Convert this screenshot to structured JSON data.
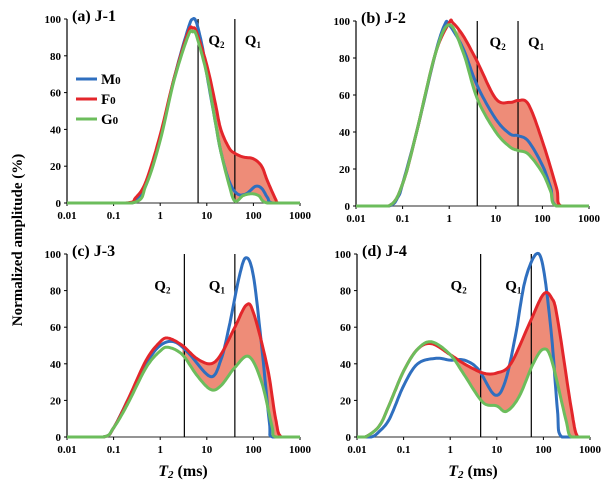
{
  "ylabel": "Normalized amplitude (%)",
  "xlabel_var": "T",
  "xlabel_sub": "2",
  "xlabel_unit": " (ms)",
  "legend": [
    {
      "label": "M",
      "sub": "0",
      "color": "#2f6fbf"
    },
    {
      "label": "F",
      "sub": "0",
      "color": "#e3262b"
    },
    {
      "label": "G",
      "sub": "0",
      "color": "#6cbd5c"
    }
  ],
  "fill_color": "#ee8c78",
  "chart_data": [
    {
      "type": "line",
      "title": "(a) J-1",
      "xscale": "log",
      "xlim": [
        0.01,
        1000
      ],
      "ylim": [
        0,
        100
      ],
      "xticks": [
        "0.01",
        "0.1",
        "1",
        "10",
        "100",
        "1000"
      ],
      "yticks": [
        "0",
        "20",
        "40",
        "60",
        "80",
        "100"
      ],
      "regions": [
        {
          "label": "Q",
          "sub": "2",
          "boundary": 6.5
        },
        {
          "label": "Q",
          "sub": "1",
          "boundary": 40
        }
      ],
      "shaded_between": [
        "F0",
        "G0"
      ],
      "shaded_from": 10,
      "series": [
        {
          "name": "M0",
          "points": [
            [
              0.01,
              0
            ],
            [
              0.2,
              0
            ],
            [
              0.3,
              2
            ],
            [
              0.5,
              10
            ],
            [
              1,
              35
            ],
            [
              2,
              68
            ],
            [
              4,
              95
            ],
            [
              5,
              100
            ],
            [
              6,
              98
            ],
            [
              8,
              85
            ],
            [
              10,
              70
            ],
            [
              15,
              45
            ],
            [
              20,
              28
            ],
            [
              30,
              12
            ],
            [
              45,
              5
            ],
            [
              70,
              5
            ],
            [
              110,
              9
            ],
            [
              150,
              8
            ],
            [
              200,
              3
            ],
            [
              260,
              0
            ],
            [
              1000,
              0
            ]
          ]
        },
        {
          "name": "F0",
          "points": [
            [
              0.01,
              0
            ],
            [
              0.18,
              0
            ],
            [
              0.3,
              3
            ],
            [
              0.5,
              12
            ],
            [
              1,
              37
            ],
            [
              2,
              68
            ],
            [
              4,
              93
            ],
            [
              5,
              95
            ],
            [
              6,
              93
            ],
            [
              10,
              75
            ],
            [
              15,
              55
            ],
            [
              20,
              40
            ],
            [
              30,
              30
            ],
            [
              40,
              27
            ],
            [
              60,
              25
            ],
            [
              100,
              24
            ],
            [
              150,
              20
            ],
            [
              200,
              12
            ],
            [
              300,
              2
            ],
            [
              350,
              0
            ],
            [
              1000,
              0
            ]
          ]
        },
        {
          "name": "G0",
          "points": [
            [
              0.01,
              0
            ],
            [
              0.25,
              0
            ],
            [
              0.5,
              10
            ],
            [
              1,
              34
            ],
            [
              2,
              67
            ],
            [
              4,
              91
            ],
            [
              5,
              93
            ],
            [
              6,
              91
            ],
            [
              10,
              70
            ],
            [
              15,
              45
            ],
            [
              20,
              28
            ],
            [
              30,
              10
            ],
            [
              40,
              1
            ],
            [
              60,
              4
            ],
            [
              90,
              5
            ],
            [
              130,
              4
            ],
            [
              200,
              0
            ],
            [
              1000,
              0
            ]
          ]
        }
      ]
    },
    {
      "type": "line",
      "title": "(b) J-2",
      "xscale": "log",
      "xlim": [
        0.01,
        1000
      ],
      "ylim": [
        0,
        100
      ],
      "xticks": [
        "0.01",
        "0.1",
        "1",
        "10",
        "100",
        "1000"
      ],
      "yticks": [
        "0",
        "20",
        "40",
        "60",
        "80",
        "100"
      ],
      "regions": [
        {
          "label": "Q",
          "sub": "2",
          "boundary": 4
        },
        {
          "label": "Q",
          "sub": "1",
          "boundary": 30
        }
      ],
      "shaded_between": [
        "F0",
        "G0"
      ],
      "shaded_from": 1.5,
      "series": [
        {
          "name": "M0",
          "points": [
            [
              0.01,
              0
            ],
            [
              0.05,
              0
            ],
            [
              0.08,
              5
            ],
            [
              0.1,
              12
            ],
            [
              0.2,
              40
            ],
            [
              0.5,
              82
            ],
            [
              0.8,
              98
            ],
            [
              1,
              98
            ],
            [
              2,
              85
            ],
            [
              4,
              65
            ],
            [
              10,
              47
            ],
            [
              20,
              39
            ],
            [
              30,
              38
            ],
            [
              50,
              35
            ],
            [
              100,
              22
            ],
            [
              150,
              10
            ],
            [
              200,
              0
            ],
            [
              1000,
              0
            ]
          ]
        },
        {
          "name": "F0",
          "points": [
            [
              0.01,
              0
            ],
            [
              0.05,
              0
            ],
            [
              0.1,
              12
            ],
            [
              0.2,
              40
            ],
            [
              0.5,
              82
            ],
            [
              1,
              99
            ],
            [
              1.2,
              99
            ],
            [
              2,
              92
            ],
            [
              4,
              78
            ],
            [
              10,
              58
            ],
            [
              20,
              56
            ],
            [
              30,
              57
            ],
            [
              50,
              55
            ],
            [
              100,
              35
            ],
            [
              200,
              10
            ],
            [
              250,
              0
            ],
            [
              1000,
              0
            ]
          ]
        },
        {
          "name": "G0",
          "points": [
            [
              0.01,
              0
            ],
            [
              0.05,
              0
            ],
            [
              0.1,
              12
            ],
            [
              0.2,
              40
            ],
            [
              0.5,
              82
            ],
            [
              1,
              98
            ],
            [
              2,
              83
            ],
            [
              4,
              58
            ],
            [
              10,
              40
            ],
            [
              20,
              32
            ],
            [
              30,
              30
            ],
            [
              50,
              28
            ],
            [
              100,
              18
            ],
            [
              150,
              8
            ],
            [
              200,
              0
            ],
            [
              1000,
              0
            ]
          ]
        }
      ]
    },
    {
      "type": "line",
      "title": "(c) J-3",
      "xscale": "log",
      "xlim": [
        0.01,
        1000
      ],
      "ylim": [
        0,
        100
      ],
      "xticks": [
        "0.01",
        "0.1",
        "1",
        "10",
        "100",
        "1000"
      ],
      "yticks": [
        "0",
        "20",
        "40",
        "60",
        "80",
        "100"
      ],
      "regions": [
        {
          "label": "Q",
          "sub": "2",
          "boundary": 3.3
        },
        {
          "label": "Q",
          "sub": "1",
          "boundary": 40
        }
      ],
      "shaded_between": [
        "F0",
        "G0"
      ],
      "shaded_from": 3,
      "series": [
        {
          "name": "M0",
          "points": [
            [
              0.01,
              0
            ],
            [
              0.06,
              0
            ],
            [
              0.1,
              5
            ],
            [
              0.2,
              20
            ],
            [
              0.5,
              40
            ],
            [
              1,
              50
            ],
            [
              2,
              52
            ],
            [
              4,
              46
            ],
            [
              12,
              33
            ],
            [
              20,
              42
            ],
            [
              30,
              60
            ],
            [
              50,
              88
            ],
            [
              70,
              98
            ],
            [
              100,
              88
            ],
            [
              150,
              50
            ],
            [
              220,
              8
            ],
            [
              260,
              0
            ],
            [
              1000,
              0
            ]
          ]
        },
        {
          "name": "F0",
          "points": [
            [
              0.01,
              0
            ],
            [
              0.06,
              0
            ],
            [
              0.1,
              5
            ],
            [
              0.2,
              20
            ],
            [
              0.5,
              42
            ],
            [
              1,
              52
            ],
            [
              1.5,
              54
            ],
            [
              3,
              50
            ],
            [
              6,
              43
            ],
            [
              12,
              40
            ],
            [
              20,
              45
            ],
            [
              40,
              60
            ],
            [
              70,
              72
            ],
            [
              100,
              68
            ],
            [
              200,
              38
            ],
            [
              300,
              10
            ],
            [
              400,
              0
            ],
            [
              1000,
              0
            ]
          ]
        },
        {
          "name": "G0",
          "points": [
            [
              0.01,
              0
            ],
            [
              0.06,
              0
            ],
            [
              0.1,
              5
            ],
            [
              0.2,
              18
            ],
            [
              0.5,
              38
            ],
            [
              1,
              47
            ],
            [
              1.5,
              49
            ],
            [
              3,
              45
            ],
            [
              6,
              34
            ],
            [
              12,
              26
            ],
            [
              20,
              28
            ],
            [
              40,
              38
            ],
            [
              80,
              44
            ],
            [
              150,
              30
            ],
            [
              250,
              6
            ],
            [
              300,
              0
            ],
            [
              1000,
              0
            ]
          ]
        }
      ]
    },
    {
      "type": "line",
      "title": "(d) J-4",
      "xscale": "log",
      "xlim": [
        0.01,
        1000
      ],
      "ylim": [
        0,
        100
      ],
      "xticks": [
        "0.01",
        "0.1",
        "1",
        "10",
        "100",
        "1000"
      ],
      "yticks": [
        "0",
        "20",
        "40",
        "60",
        "80",
        "100"
      ],
      "regions": [
        {
          "label": "Q",
          "sub": "2",
          "boundary": 4.5
        },
        {
          "label": "Q",
          "sub": "1",
          "boundary": 55
        }
      ],
      "shaded_between": [
        "F0",
        "G0"
      ],
      "shaded_from": 0.6,
      "series": [
        {
          "name": "M0",
          "points": [
            [
              0.01,
              0
            ],
            [
              0.02,
              0
            ],
            [
              0.03,
              3
            ],
            [
              0.05,
              10
            ],
            [
              0.1,
              28
            ],
            [
              0.2,
              40
            ],
            [
              0.5,
              43
            ],
            [
              1,
              42
            ],
            [
              2,
              42
            ],
            [
              4,
              37
            ],
            [
              9,
              23
            ],
            [
              15,
              30
            ],
            [
              25,
              55
            ],
            [
              40,
              85
            ],
            [
              70,
              100
            ],
            [
              100,
              92
            ],
            [
              150,
              55
            ],
            [
              200,
              15
            ],
            [
              250,
              0
            ],
            [
              1000,
              0
            ]
          ]
        },
        {
          "name": "F0",
          "points": [
            [
              0.01,
              0
            ],
            [
              0.015,
              0
            ],
            [
              0.03,
              6
            ],
            [
              0.05,
              18
            ],
            [
              0.1,
              36
            ],
            [
              0.2,
              48
            ],
            [
              0.4,
              51
            ],
            [
              1,
              45
            ],
            [
              2,
              40
            ],
            [
              5,
              35
            ],
            [
              10,
              35
            ],
            [
              20,
              40
            ],
            [
              50,
              62
            ],
            [
              100,
              78
            ],
            [
              150,
              76
            ],
            [
              200,
              65
            ],
            [
              400,
              15
            ],
            [
              550,
              0
            ],
            [
              1000,
              0
            ]
          ]
        },
        {
          "name": "G0",
          "points": [
            [
              0.01,
              0
            ],
            [
              0.015,
              0
            ],
            [
              0.03,
              6
            ],
            [
              0.05,
              18
            ],
            [
              0.1,
              36
            ],
            [
              0.2,
              48
            ],
            [
              0.4,
              52
            ],
            [
              1,
              45
            ],
            [
              2,
              34
            ],
            [
              5,
              19
            ],
            [
              10,
              17
            ],
            [
              16,
              14
            ],
            [
              30,
              22
            ],
            [
              60,
              40
            ],
            [
              100,
              48
            ],
            [
              150,
              42
            ],
            [
              300,
              10
            ],
            [
              400,
              0
            ],
            [
              1000,
              0
            ]
          ]
        }
      ]
    }
  ]
}
